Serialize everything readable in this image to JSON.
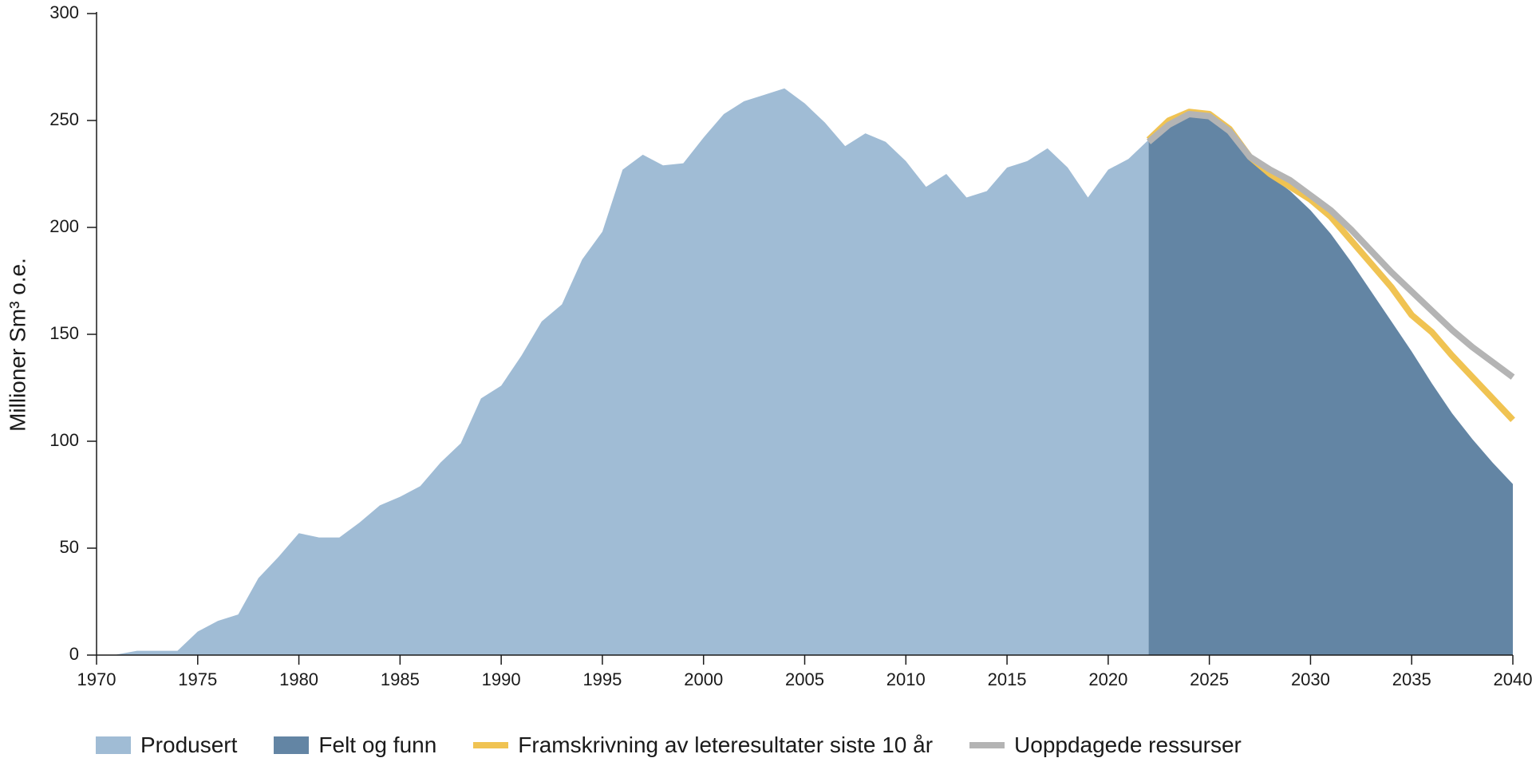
{
  "chart_data": {
    "type": "area",
    "ylabel": "Millioner Sm³ o.e.",
    "xlabel": "",
    "xlim": [
      1970,
      2040
    ],
    "ylim": [
      0,
      300
    ],
    "x_ticks": [
      "1970",
      "1975",
      "1980",
      "1985",
      "1990",
      "1995",
      "2000",
      "2005",
      "2010",
      "2015",
      "2020",
      "2025",
      "2030",
      "2035",
      "2040"
    ],
    "y_ticks": [
      "0",
      "50",
      "100",
      "150",
      "200",
      "250",
      "300"
    ],
    "grid": false,
    "legend_position": "bottom",
    "series": [
      {
        "name": "Produsert",
        "kind": "area",
        "color": "#a0bcd5",
        "x": [
          1971,
          1972,
          1973,
          1974,
          1975,
          1976,
          1977,
          1978,
          1979,
          1980,
          1981,
          1982,
          1983,
          1984,
          1985,
          1986,
          1987,
          1988,
          1989,
          1990,
          1991,
          1992,
          1993,
          1994,
          1995,
          1996,
          1997,
          1998,
          1999,
          2000,
          2001,
          2002,
          2003,
          2004,
          2005,
          2006,
          2007,
          2008,
          2009,
          2010,
          2011,
          2012,
          2013,
          2014,
          2015,
          2016,
          2017,
          2018,
          2019,
          2020,
          2021,
          2022
        ],
        "y": [
          0.3,
          2,
          2,
          2,
          11,
          16,
          19,
          36,
          46,
          57,
          55,
          55,
          62,
          70,
          74,
          79,
          90,
          99,
          120,
          126,
          140,
          156,
          164,
          185,
          198,
          227,
          234,
          229,
          230,
          242,
          253,
          259,
          262,
          265,
          258,
          249,
          238,
          244,
          240,
          231,
          219,
          225,
          214,
          217,
          228,
          231,
          237,
          228,
          214,
          227,
          232,
          241
        ]
      },
      {
        "name": "Felt og funn",
        "kind": "area",
        "color": "#6385a4",
        "x": [
          2022,
          2023,
          2024,
          2025,
          2026,
          2027,
          2028,
          2029,
          2030,
          2031,
          2032,
          2033,
          2034,
          2035,
          2036,
          2037,
          2038,
          2039,
          2040
        ],
        "y": [
          241,
          248,
          252,
          251,
          244,
          232,
          224,
          217,
          208,
          197,
          184,
          170,
          156,
          142,
          127,
          113,
          101,
          90,
          80
        ]
      },
      {
        "name": "Framskrivning av leteresultater siste 10 år",
        "kind": "line",
        "color": "#f0c352",
        "x": [
          2022,
          2023,
          2024,
          2025,
          2026,
          2027,
          2028,
          2029,
          2030,
          2031,
          2032,
          2033,
          2034,
          2035,
          2036,
          2037,
          2038,
          2039,
          2040
        ],
        "y": [
          241,
          250,
          254,
          253,
          246,
          233,
          225,
          219,
          213,
          205,
          194,
          183,
          172,
          159,
          151,
          140,
          130,
          120,
          110
        ]
      },
      {
        "name": "Uoppdagede ressurser",
        "kind": "line",
        "color": "#b4b4b4",
        "x": [
          2022,
          2023,
          2024,
          2025,
          2026,
          2027,
          2028,
          2029,
          2030,
          2031,
          2032,
          2033,
          2034,
          2035,
          2036,
          2037,
          2038,
          2039,
          2040
        ],
        "y": [
          240,
          248,
          253,
          252,
          245,
          233,
          227,
          222,
          215,
          208,
          199,
          189,
          179,
          170,
          161,
          152,
          144,
          137,
          130
        ]
      }
    ]
  }
}
